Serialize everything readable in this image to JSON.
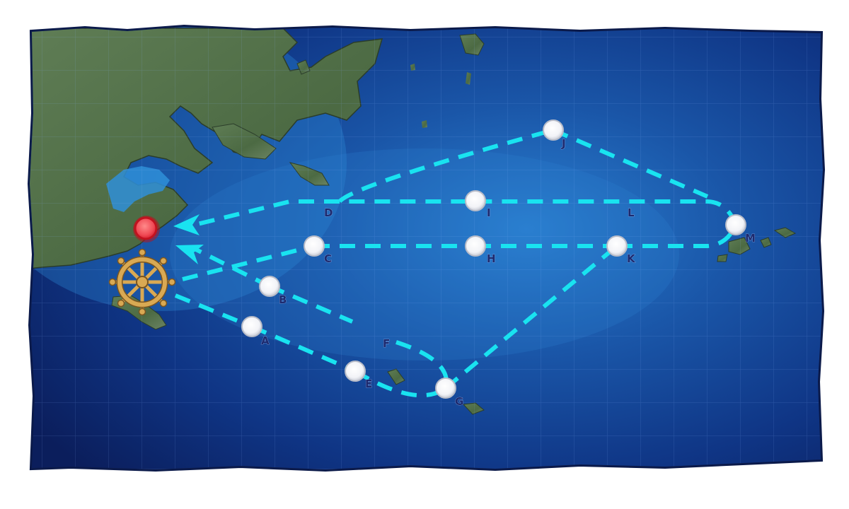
{
  "map": {
    "nodes": [
      {
        "id": "A",
        "label": "A",
        "type": "normal"
      },
      {
        "id": "B",
        "label": "B",
        "type": "normal"
      },
      {
        "id": "C",
        "label": "C",
        "type": "normal"
      },
      {
        "id": "D",
        "label": "D",
        "type": "normal"
      },
      {
        "id": "E",
        "label": "E",
        "type": "normal"
      },
      {
        "id": "F",
        "label": "F",
        "type": "normal"
      },
      {
        "id": "G",
        "label": "G",
        "type": "normal"
      },
      {
        "id": "H",
        "label": "H",
        "type": "normal"
      },
      {
        "id": "I",
        "label": "I",
        "type": "normal"
      },
      {
        "id": "J",
        "label": "J",
        "type": "normal"
      },
      {
        "id": "K",
        "label": "K",
        "type": "normal"
      },
      {
        "id": "L",
        "label": "L",
        "type": "normal"
      },
      {
        "id": "M",
        "label": "M",
        "type": "normal"
      }
    ],
    "start_icon": "ship-wheel-icon",
    "goal_icon": "red-goal-node-icon",
    "colors": {
      "route": "#19e3f0",
      "node_fill": "#ffffff",
      "node_ring": "#c9ccd6",
      "goal": "#ee2d3f",
      "wheel": "#d9a953",
      "land": "#4e6b45",
      "sea_deep": "#0c1f5e",
      "sea_shallow": "#1f6fc0",
      "label": "#1c2a6e"
    }
  }
}
